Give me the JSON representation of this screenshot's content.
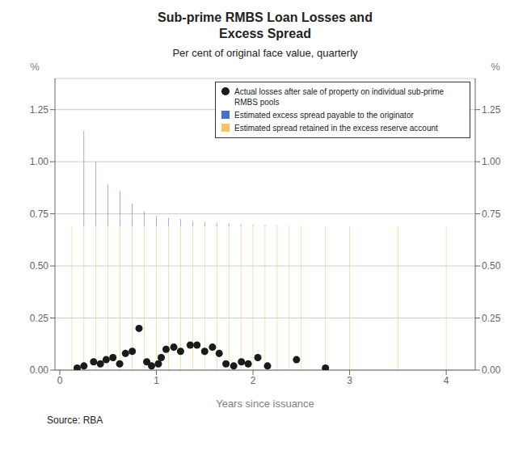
{
  "chart_data": {
    "type": "bar",
    "title": "Sub-prime RMBS Loan Losses and\nExcess Spread",
    "subtitle": "Per cent of original face value, quarterly",
    "x_label": "Years since issuance",
    "y_label": "%",
    "y2_label": "%",
    "source": "Source: RBA",
    "stacked": true,
    "grid": true,
    "legend": "upper right",
    "xlim": [
      -0.05,
      4.3
    ],
    "xticks": [
      0,
      1,
      2,
      3,
      4
    ],
    "ylim": [
      0.0,
      1.4
    ],
    "yticks": [
      {
        "value": 0.0,
        "label": "0.00"
      },
      {
        "value": 0.25,
        "label": "0.25"
      },
      {
        "value": 0.5,
        "label": "0.50"
      },
      {
        "value": 0.75,
        "label": "0.75"
      },
      {
        "value": 1.0,
        "label": "1.00"
      },
      {
        "value": 1.25,
        "label": "1.25"
      }
    ],
    "y2lim": [
      0.0,
      1.4
    ],
    "y2ticks": [
      {
        "value": 0.0,
        "label": "0.00"
      },
      {
        "value": 0.25,
        "label": "0.25"
      },
      {
        "value": 0.5,
        "label": "0.50"
      },
      {
        "value": 0.75,
        "label": "0.75"
      },
      {
        "value": 1.0,
        "label": "1.00"
      },
      {
        "value": 1.25,
        "label": "1.25"
      }
    ],
    "series": [
      {
        "name": "Actual losses after sale of property on individual sub-prime\nRMBS pools",
        "type": "scatter",
        "marker": "circle",
        "color": "#1a1a1a",
        "x": [
          0.18,
          0.25,
          0.35,
          0.42,
          0.48,
          0.55,
          0.62,
          0.68,
          0.75,
          0.82,
          0.9,
          0.95,
          1.02,
          1.05,
          1.1,
          1.18,
          1.25,
          1.35,
          1.42,
          1.5,
          1.58,
          1.65,
          1.72,
          1.8,
          1.88,
          1.95,
          2.05,
          2.15,
          2.45,
          2.75
        ],
        "values": [
          0.01,
          0.02,
          0.04,
          0.03,
          0.05,
          0.06,
          0.03,
          0.08,
          0.09,
          0.2,
          0.04,
          0.02,
          0.03,
          0.06,
          0.1,
          0.11,
          0.09,
          0.12,
          0.12,
          0.09,
          0.11,
          0.08,
          0.03,
          0.02,
          0.04,
          0.03,
          0.06,
          0.02,
          0.05,
          0.01
        ]
      },
      {
        "name": "Estimated excess spread payable to the originator",
        "type": "bar",
        "color": "#4472C4",
        "x": [
          0.125,
          0.25,
          0.375,
          0.5,
          0.625,
          0.75,
          0.875,
          1.0,
          1.125,
          1.25,
          1.375,
          1.5,
          1.625,
          1.75,
          1.875,
          2.0,
          2.125,
          2.25,
          2.375,
          2.5,
          2.75,
          3.0,
          3.5,
          4.0
        ],
        "values": [
          0.0,
          0.46,
          0.31,
          0.2,
          0.17,
          0.11,
          0.07,
          0.05,
          0.04,
          0.035,
          0.025,
          0.02,
          0.018,
          0.015,
          0.01,
          0.008,
          0.005,
          0.003,
          0.002,
          0.001,
          0.0,
          0.0,
          0.0,
          0.0
        ]
      },
      {
        "name": "Estimated spread retained in the excess reserve account",
        "type": "bar",
        "color": "#F5C36B",
        "x": [
          0.125,
          0.25,
          0.375,
          0.5,
          0.625,
          0.75,
          0.875,
          1.0,
          1.125,
          1.25,
          1.375,
          1.5,
          1.625,
          1.75,
          1.875,
          2.0,
          2.125,
          2.25,
          2.375,
          2.5,
          2.75,
          3.0,
          3.5,
          4.0
        ],
        "values": [
          0.69,
          0.69,
          0.69,
          0.69,
          0.69,
          0.69,
          0.69,
          0.69,
          0.69,
          0.69,
          0.69,
          0.69,
          0.69,
          0.69,
          0.69,
          0.69,
          0.69,
          0.69,
          0.69,
          0.69,
          0.69,
          0.69,
          0.69,
          0.69
        ]
      }
    ]
  }
}
